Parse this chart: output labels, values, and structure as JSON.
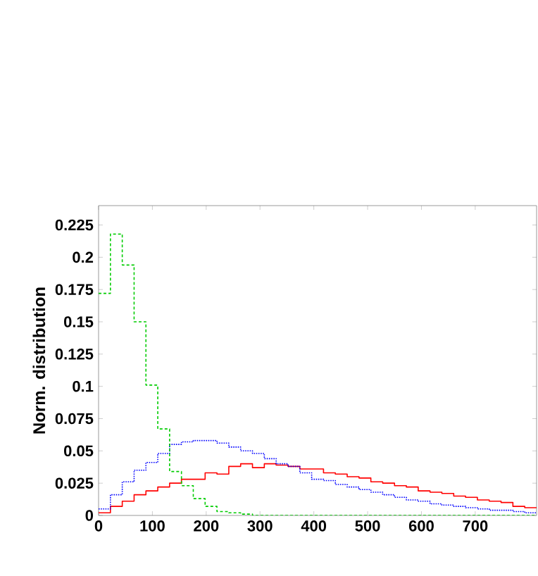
{
  "chart_data": {
    "type": "histogram",
    "ylabel": "Norm. distribution",
    "bins": [
      0,
      22,
      44,
      66,
      88,
      110,
      132,
      154,
      176,
      198,
      220,
      242,
      264,
      286,
      308,
      330,
      352,
      374,
      396,
      418,
      440,
      462,
      484,
      506,
      528,
      550,
      572,
      594,
      616,
      638,
      660,
      682,
      704,
      726,
      748,
      770,
      792,
      814
    ],
    "series": [
      {
        "color": "#ff0000",
        "line_style": "solid",
        "values": [
          0.002,
          0.007,
          0.011,
          0.016,
          0.019,
          0.022,
          0.025,
          0.028,
          0.028,
          0.033,
          0.032,
          0.038,
          0.04,
          0.037,
          0.04,
          0.039,
          0.038,
          0.036,
          0.036,
          0.033,
          0.032,
          0.03,
          0.029,
          0.026,
          0.025,
          0.023,
          0.022,
          0.019,
          0.018,
          0.017,
          0.015,
          0.014,
          0.012,
          0.011,
          0.01,
          0.007,
          0.006
        ]
      },
      {
        "color": "#0000ff",
        "line_style": "dotted",
        "values": [
          0.005,
          0.016,
          0.026,
          0.035,
          0.041,
          0.048,
          0.055,
          0.057,
          0.058,
          0.058,
          0.056,
          0.053,
          0.05,
          0.048,
          0.044,
          0.04,
          0.038,
          0.033,
          0.028,
          0.027,
          0.024,
          0.022,
          0.02,
          0.018,
          0.016,
          0.014,
          0.012,
          0.011,
          0.009,
          0.008,
          0.007,
          0.006,
          0.005,
          0.004,
          0.004,
          0.003,
          0.002
        ]
      },
      {
        "color": "#00cc00",
        "line_style": "dashed",
        "values": [
          0.172,
          0.218,
          0.194,
          0.15,
          0.101,
          0.067,
          0.034,
          0.023,
          0.013,
          0.007,
          0.003,
          0.002,
          0.001,
          0,
          0,
          0,
          0,
          0,
          0,
          0,
          0,
          0,
          0,
          0,
          0,
          0,
          0,
          0,
          0,
          0,
          0,
          0,
          0,
          0,
          0,
          0,
          0
        ]
      }
    ],
    "xlim": [
      0,
      814
    ],
    "ylim": [
      0,
      0.24
    ],
    "xticks": [
      0,
      100,
      200,
      300,
      400,
      500,
      600,
      700
    ],
    "yticks": [
      0,
      0.025,
      0.05,
      0.075,
      0.1,
      0.125,
      0.15,
      0.175,
      0.2,
      0.225
    ]
  }
}
